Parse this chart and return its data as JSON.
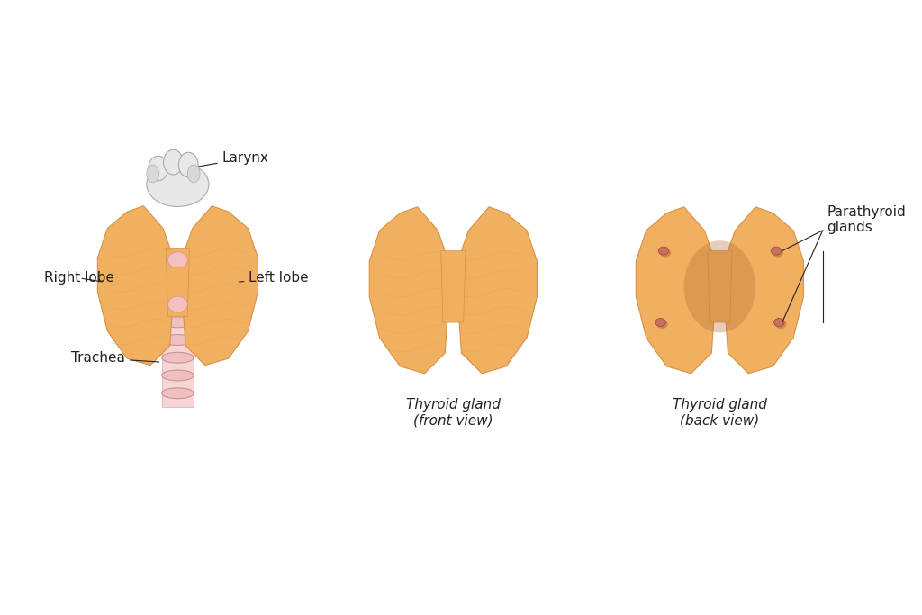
{
  "bg_color": "#ffffff",
  "thyroid_color": "#f0b060",
  "thyroid_dark": "#d4924a",
  "thyroid_shadow": "#c07840",
  "larynx_color": "#e8e8e8",
  "larynx_dark": "#c8c8c8",
  "trachea_color": "#f5d5d5",
  "trachea_ring_color": "#e8a0a0",
  "parathyroid_color": "#c87060",
  "text_color": "#222222",
  "label_fontsize": 11,
  "caption_fontsize": 11,
  "fig_width": 10.24,
  "fig_height": 6.83,
  "labels": {
    "larynx": "Larynx",
    "right_lobe": "Right lobe",
    "left_lobe": "Left lobe",
    "trachea": "Trachea",
    "front_caption": "Thyroid gland\n(front view)",
    "back_caption": "Thyroid gland\n(back view)",
    "parathyroid": "Parathyroid\nglands"
  }
}
